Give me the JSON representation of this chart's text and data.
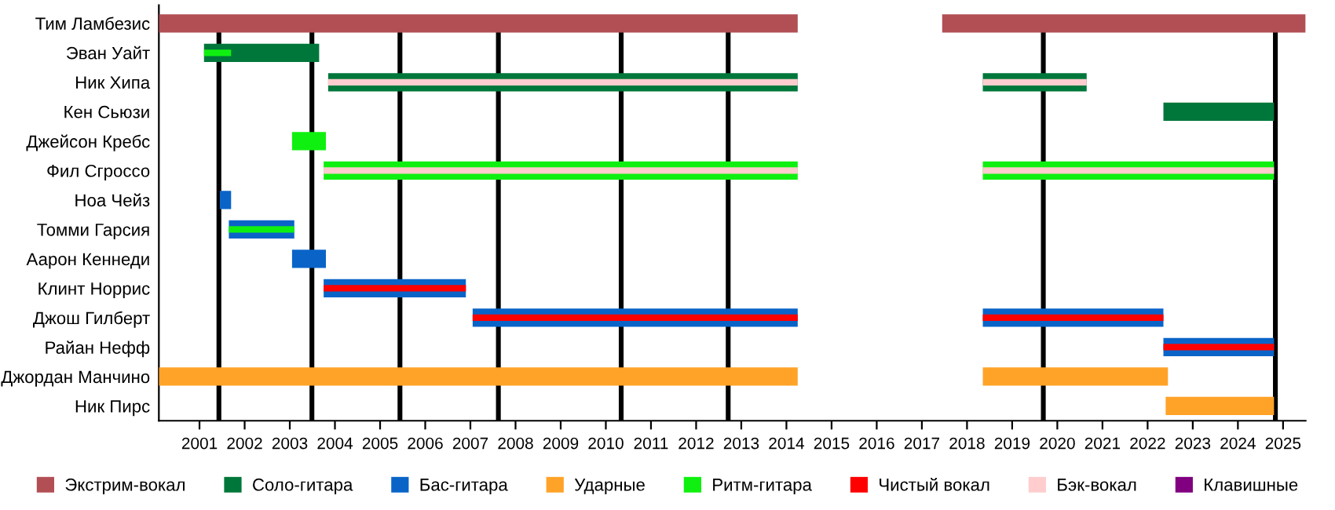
{
  "chart_data": {
    "type": "bar",
    "orientation": "horizontal",
    "categories": [
      "Тим Ламбезис",
      "Эван Уайт",
      "Ник Хипа",
      "Кен Сьюзи",
      "Джейсон Кребс",
      "Фил Сгроссо",
      "Ноа Чейз",
      "Томми Гарсия",
      "Аарон Кеннеди",
      "Клинт Норрис",
      "Джош Гилберт",
      "Райан Нефф",
      "Джордан Манчино",
      "Ник Пирс"
    ],
    "series": [
      {
        "name": "Экстрим-вокал",
        "color": "#b24f55",
        "base": [
          2000.1,
          null,
          null,
          null,
          null,
          null,
          null,
          null,
          null,
          null,
          null,
          null,
          null,
          null
        ],
        "values": [
          14.15,
          null,
          null,
          null,
          null,
          null,
          null,
          null,
          null,
          null,
          null,
          null,
          null,
          null
        ]
      },
      {
        "name": "Соло-гитара",
        "color": "#00773a",
        "base": [
          null,
          2001.1,
          2003.85,
          2022.35,
          null,
          null,
          null,
          null,
          null,
          null,
          null,
          null,
          null,
          null
        ],
        "values": [
          null,
          2.55,
          10.4,
          2.45,
          null,
          null,
          null,
          null,
          null,
          null,
          null,
          null,
          null,
          null
        ]
      },
      {
        "name": "Бас-гитара",
        "color": "#0a64c8",
        "base": [
          null,
          null,
          null,
          null,
          null,
          null,
          2001.45,
          2001.65,
          2003.05,
          2003.75,
          2007.05,
          2022.35,
          null,
          null
        ],
        "values": [
          null,
          null,
          null,
          null,
          null,
          null,
          0.25,
          1.45,
          0.75,
          3.15,
          7.2,
          2.45,
          null,
          null
        ]
      },
      {
        "name": "Ударные",
        "color": "#ffa328",
        "base": [
          null,
          null,
          null,
          null,
          null,
          null,
          null,
          null,
          null,
          null,
          null,
          null,
          2000.1,
          2022.4
        ],
        "values": [
          null,
          null,
          null,
          null,
          null,
          null,
          null,
          null,
          null,
          null,
          null,
          null,
          14.15,
          2.4
        ]
      },
      {
        "name": "Ритм-гитара",
        "color": "#10f010",
        "base": [
          null,
          2001.1,
          null,
          null,
          2003.05,
          2003.75,
          null,
          2001.65,
          null,
          null,
          null,
          null,
          null,
          null
        ],
        "values": [
          null,
          0.6,
          null,
          null,
          0.75,
          10.5,
          null,
          1.45,
          null,
          null,
          null,
          null,
          null,
          null
        ]
      },
      {
        "color": "#b24f55",
        "base": [
          2017.45,
          null,
          null,
          null,
          null,
          null,
          null,
          null,
          null,
          null,
          null,
          null,
          null,
          null
        ],
        "values": [
          8.05,
          null,
          null,
          null,
          null,
          null,
          null,
          null,
          null,
          null,
          null,
          null,
          null,
          null
        ]
      },
      {
        "color": "#00773a",
        "base": [
          null,
          null,
          2018.35,
          null,
          null,
          null,
          null,
          null,
          null,
          null,
          null,
          null,
          null,
          null
        ],
        "values": [
          null,
          null,
          2.3,
          null,
          null,
          null,
          null,
          null,
          null,
          null,
          null,
          null,
          null,
          null
        ]
      },
      {
        "color": "#0a64c8",
        "base": [
          null,
          null,
          null,
          null,
          null,
          null,
          null,
          null,
          null,
          null,
          2018.35,
          null,
          null,
          null
        ],
        "values": [
          null,
          null,
          null,
          null,
          null,
          null,
          null,
          null,
          null,
          null,
          4.0,
          null,
          null,
          null
        ]
      },
      {
        "color": "#ffa328",
        "base": [
          null,
          null,
          null,
          null,
          null,
          null,
          null,
          null,
          null,
          null,
          null,
          null,
          2018.35,
          null
        ],
        "values": [
          null,
          null,
          null,
          null,
          null,
          null,
          null,
          null,
          null,
          null,
          null,
          null,
          4.1,
          null
        ]
      },
      {
        "color": "#10f010",
        "base": [
          null,
          null,
          null,
          null,
          null,
          2018.35,
          null,
          null,
          null,
          null,
          null,
          null,
          null,
          null
        ],
        "values": [
          null,
          null,
          null,
          null,
          null,
          6.45,
          null,
          null,
          null,
          null,
          null,
          null,
          null,
          null
        ]
      },
      {
        "name": "Чистый вокал",
        "color": "#ff0000",
        "base": [
          null,
          null,
          null,
          null,
          null,
          null,
          null,
          null,
          null,
          2003.75,
          2007.05,
          2022.35,
          null,
          null
        ],
        "values": [
          null,
          null,
          null,
          null,
          null,
          null,
          null,
          null,
          null,
          3.15,
          7.2,
          2.45,
          null,
          null
        ]
      },
      {
        "name": "Бэк-вокал",
        "color": "#ffcdcd",
        "base": [
          null,
          null,
          2003.85,
          null,
          null,
          2003.75,
          null,
          null,
          null,
          null,
          null,
          null,
          null,
          null
        ],
        "values": [
          null,
          null,
          10.4,
          null,
          null,
          10.5,
          null,
          null,
          null,
          null,
          null,
          null,
          null,
          null
        ]
      },
      {
        "name": "Клавишные",
        "color": "#800080",
        "base": [
          null,
          null,
          null,
          null,
          null,
          null,
          null,
          null,
          null,
          null,
          null,
          null,
          null,
          null
        ],
        "values": [
          null,
          null,
          null,
          null,
          null,
          null,
          null,
          null,
          null,
          null,
          null,
          null,
          null,
          null
        ]
      },
      {
        "color": "#ff0000",
        "base": [
          null,
          null,
          null,
          null,
          null,
          null,
          null,
          null,
          null,
          null,
          2018.35,
          null,
          null,
          null
        ],
        "values": [
          null,
          null,
          null,
          null,
          null,
          null,
          null,
          null,
          null,
          null,
          4.0,
          null,
          null,
          null
        ]
      },
      {
        "color": "#ffcdcd",
        "base": [
          null,
          null,
          2018.35,
          null,
          null,
          2018.35,
          null,
          null,
          null,
          null,
          null,
          null,
          null,
          null
        ],
        "values": [
          null,
          null,
          2.3,
          null,
          null,
          6.45,
          null,
          null,
          null,
          null,
          null,
          null,
          null,
          null
        ]
      }
    ],
    "xlim": [
      2000.1,
      2025.5
    ],
    "xticks": [
      2001,
      2002,
      2003,
      2004,
      2005,
      2006,
      2007,
      2008,
      2009,
      2010,
      2011,
      2012,
      2013,
      2014,
      2015,
      2016,
      2017,
      2018,
      2019,
      2020,
      2021,
      2022,
      2023,
      2024,
      2025
    ],
    "ref_lines": [
      {
        "axis": "x",
        "value": 2001.43,
        "color": "#000000"
      },
      {
        "axis": "x",
        "value": 2003.49,
        "color": "#000000"
      },
      {
        "axis": "x",
        "value": 2005.44,
        "color": "#000000"
      },
      {
        "axis": "x",
        "value": 2007.62,
        "color": "#000000"
      },
      {
        "axis": "x",
        "value": 2010.34,
        "color": "#000000"
      },
      {
        "axis": "x",
        "value": 2012.71,
        "color": "#000000"
      },
      {
        "axis": "x",
        "value": 2019.69,
        "color": "#000000"
      },
      {
        "axis": "x",
        "value": 2024.83,
        "color": "#000000"
      }
    ],
    "grid": false,
    "legend": "bottom"
  }
}
